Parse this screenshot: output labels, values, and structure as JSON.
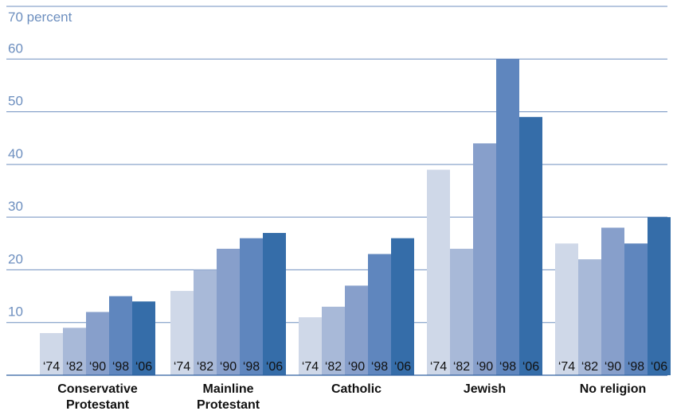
{
  "chart_data": {
    "type": "bar",
    "ylabel": "70 percent",
    "ylim": [
      0,
      70
    ],
    "yticks": [
      "10",
      "20",
      "30",
      "40",
      "50",
      "60"
    ],
    "grid": true,
    "legend": "none",
    "categories": [
      [
        "Conservative",
        "Protestant"
      ],
      [
        "Mainline",
        "Protestant"
      ],
      [
        "Catholic"
      ],
      [
        "Jewish"
      ],
      [
        "No religion"
      ]
    ],
    "series": [
      {
        "name": "'74",
        "values": [
          8,
          16,
          11,
          39,
          25
        ],
        "color": "#cfd8e8"
      },
      {
        "name": "'82",
        "values": [
          9,
          20,
          13,
          24,
          22
        ],
        "color": "#a8b9d8"
      },
      {
        "name": "'90",
        "values": [
          12,
          24,
          17,
          44,
          28
        ],
        "color": "#879fcb"
      },
      {
        "name": "'98",
        "values": [
          15,
          26,
          23,
          60,
          25
        ],
        "color": "#5f86be"
      },
      {
        "name": "'06",
        "values": [
          14,
          27,
          26,
          49,
          30
        ],
        "color": "#356da9"
      }
    ],
    "bar_labels": [
      "‘74",
      "‘82",
      "‘90",
      "‘98",
      "‘06"
    ]
  }
}
